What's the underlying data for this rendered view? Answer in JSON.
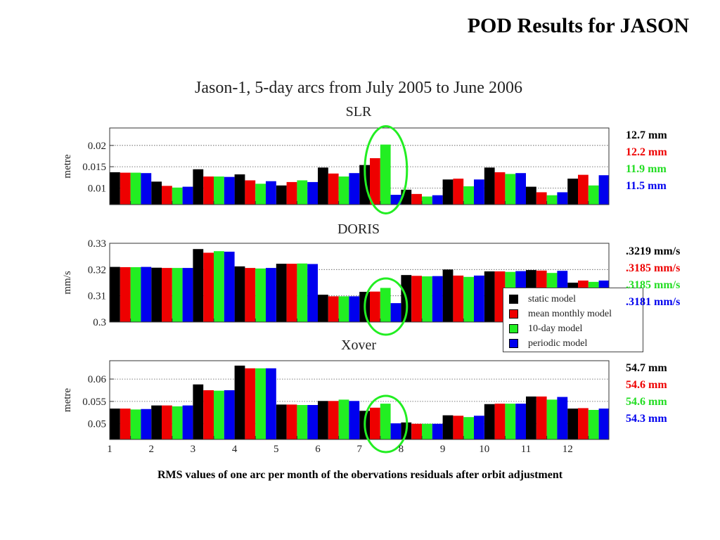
{
  "slide_title": "POD Results for JASON",
  "figure_title": "Jason-1,  5-day arcs from July 2005 to June 2006",
  "caption": "RMS values of one arc per month of the obervations residuals after orbit adjustment",
  "series_colors": [
    "#000000",
    "#ee0000",
    "#22ee22",
    "#0000ee"
  ],
  "highlight_color": "#22ee22",
  "stats": {
    "slr": [
      {
        "text": "12.7 mm",
        "color": "#000000"
      },
      {
        "text": "12.2 mm",
        "color": "#ee0000"
      },
      {
        "text": "11.9 mm",
        "color": "#22dd22"
      },
      {
        "text": "11.5 mm",
        "color": "#0000ee"
      }
    ],
    "doris": [
      {
        "text": ".3219 mm/s",
        "color": "#000000"
      },
      {
        "text": ".3185 mm/s",
        "color": "#ee0000"
      },
      {
        "text": ".3185 mm/s",
        "color": "#22dd22"
      },
      {
        "text": ".3181 mm/s",
        "color": "#0000ee"
      }
    ],
    "xover": [
      {
        "text": "54.7 mm",
        "color": "#000000"
      },
      {
        "text": "54.6 mm",
        "color": "#ee0000"
      },
      {
        "text": "54.6 mm",
        "color": "#22dd22"
      },
      {
        "text": "54.3 mm",
        "color": "#0000ee"
      }
    ]
  },
  "chart_data": [
    {
      "type": "bar",
      "title": "SLR",
      "ylabel": "metre",
      "ylim": [
        0.0061,
        0.0241
      ],
      "yticks": [
        "0.01",
        "0.015",
        "0.02"
      ],
      "ytick_values": [
        0.01,
        0.015,
        0.02
      ],
      "categories": [
        "1",
        "2",
        "3",
        "4",
        "5",
        "6",
        "7",
        "8",
        "9",
        "10",
        "11",
        "12"
      ],
      "grid": true,
      "highlight_category": 7,
      "series": [
        {
          "name": "static model",
          "values": [
            0.0137,
            0.0115,
            0.0144,
            0.0132,
            0.0106,
            0.0148,
            0.0154,
            0.0096,
            0.012,
            0.0148,
            0.0103,
            0.0122
          ]
        },
        {
          "name": "mean monthly model",
          "values": [
            0.0136,
            0.0105,
            0.0127,
            0.0118,
            0.0114,
            0.0134,
            0.017,
            0.0086,
            0.0122,
            0.0137,
            0.009,
            0.0131
          ]
        },
        {
          "name": "10-day model",
          "values": [
            0.0136,
            0.0101,
            0.0127,
            0.011,
            0.0118,
            0.0127,
            0.0202,
            0.008,
            0.0104,
            0.0133,
            0.0083,
            0.0106
          ]
        },
        {
          "name": "periodic model",
          "values": [
            0.0135,
            0.0103,
            0.0126,
            0.0116,
            0.0114,
            0.0135,
            0.0084,
            0.0083,
            0.012,
            0.0135,
            0.009,
            0.013
          ]
        }
      ]
    },
    {
      "type": "bar",
      "title": "DORIS",
      "ylabel": "mm/s",
      "ylim": [
        0.3,
        0.33
      ],
      "yticks": [
        "0.3",
        "0.31",
        "0.32",
        "0.33"
      ],
      "ytick_values": [
        0.3,
        0.31,
        0.32,
        0.33
      ],
      "categories": [
        "1",
        "2",
        "3",
        "4",
        "5",
        "6",
        "7",
        "8",
        "9",
        "10",
        "11",
        "12"
      ],
      "grid": true,
      "highlight_category": 7,
      "series": [
        {
          "name": "static model",
          "values": [
            0.321,
            0.3207,
            0.3278,
            0.3212,
            0.3222,
            0.3104,
            0.3115,
            0.3179,
            0.32,
            0.3193,
            0.3198,
            0.315
          ]
        },
        {
          "name": "mean monthly model",
          "values": [
            0.3209,
            0.3206,
            0.3264,
            0.3206,
            0.3222,
            0.3098,
            0.3116,
            0.3176,
            0.3177,
            0.3193,
            0.3196,
            0.3158
          ]
        },
        {
          "name": "10-day model",
          "values": [
            0.3209,
            0.3206,
            0.327,
            0.3204,
            0.3223,
            0.3098,
            0.313,
            0.3174,
            0.3172,
            0.3191,
            0.3187,
            0.3153
          ]
        },
        {
          "name": "periodic model",
          "values": [
            0.321,
            0.3206,
            0.3268,
            0.3206,
            0.3221,
            0.3098,
            0.3072,
            0.3175,
            0.3177,
            0.3194,
            0.3195,
            0.3158
          ]
        }
      ]
    },
    {
      "type": "bar",
      "title": "Xover",
      "ylabel": "metre",
      "ylim": [
        0.0465,
        0.0641
      ],
      "yticks": [
        "0.05",
        "0.055",
        "0.06"
      ],
      "ytick_values": [
        0.05,
        0.055,
        0.06
      ],
      "categories": [
        "1",
        "2",
        "3",
        "4",
        "5",
        "6",
        "7",
        "8",
        "9",
        "10",
        "11",
        "12"
      ],
      "grid": true,
      "highlight_category": 7,
      "series": [
        {
          "name": "static model",
          "values": [
            0.0534,
            0.0541,
            0.0588,
            0.063,
            0.0543,
            0.0551,
            0.0529,
            0.0503,
            0.0519,
            0.0544,
            0.0561,
            0.0534
          ]
        },
        {
          "name": "mean monthly model",
          "values": [
            0.0534,
            0.0541,
            0.0575,
            0.0624,
            0.0543,
            0.0551,
            0.0536,
            0.05,
            0.0518,
            0.0545,
            0.0561,
            0.0535
          ]
        },
        {
          "name": "10-day model",
          "values": [
            0.0532,
            0.0539,
            0.0574,
            0.0624,
            0.0542,
            0.0554,
            0.0545,
            0.05,
            0.0515,
            0.0545,
            0.0554,
            0.0531
          ]
        },
        {
          "name": "periodic model",
          "values": [
            0.0533,
            0.0541,
            0.0575,
            0.0624,
            0.0542,
            0.0551,
            0.0501,
            0.05,
            0.0518,
            0.0545,
            0.056,
            0.0534
          ]
        }
      ]
    }
  ]
}
